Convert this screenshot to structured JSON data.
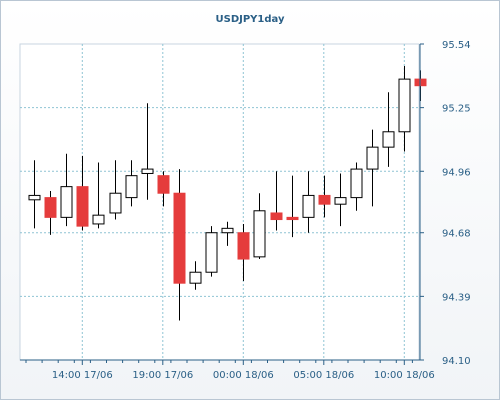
{
  "chart_data": {
    "type": "candlestick",
    "title": "USDJPY1day",
    "y_ticks": [
      "95.54",
      "95.25",
      "94.96",
      "94.68",
      "94.39",
      "94.10"
    ],
    "ylim": [
      94.1,
      95.54
    ],
    "x_ticks": [
      {
        "label": "14:00 17/06",
        "index": 3
      },
      {
        "label": "19:00 17/06",
        "index": 8
      },
      {
        "label": "00:00 18/06",
        "index": 13
      },
      {
        "label": "05:00 18/06",
        "index": 18
      },
      {
        "label": "10:00 18/06",
        "index": 23
      }
    ],
    "grid": true,
    "colors": {
      "up_body": "#ffffff",
      "down_body": "#e53c3c",
      "outline": "#000000",
      "grid": "#8fc4d4",
      "axis": "#2a5f86"
    },
    "candles": [
      {
        "open": 94.83,
        "high": 95.01,
        "low": 94.7,
        "close": 94.85
      },
      {
        "open": 94.84,
        "high": 94.87,
        "low": 94.67,
        "close": 94.75
      },
      {
        "open": 94.75,
        "high": 95.04,
        "low": 94.71,
        "close": 94.89
      },
      {
        "open": 94.89,
        "high": 95.03,
        "low": 94.69,
        "close": 94.71
      },
      {
        "open": 94.72,
        "high": 95.0,
        "low": 94.7,
        "close": 94.76
      },
      {
        "open": 94.77,
        "high": 95.01,
        "low": 94.74,
        "close": 94.86
      },
      {
        "open": 94.84,
        "high": 95.01,
        "low": 94.8,
        "close": 94.94
      },
      {
        "open": 94.95,
        "high": 95.27,
        "low": 94.83,
        "close": 94.97
      },
      {
        "open": 94.94,
        "high": 94.96,
        "low": 94.8,
        "close": 94.86
      },
      {
        "open": 94.86,
        "high": 94.97,
        "low": 94.28,
        "close": 94.45
      },
      {
        "open": 94.45,
        "high": 94.55,
        "low": 94.42,
        "close": 94.5
      },
      {
        "open": 94.5,
        "high": 94.71,
        "low": 94.48,
        "close": 94.68
      },
      {
        "open": 94.68,
        "high": 94.73,
        "low": 94.62,
        "close": 94.7
      },
      {
        "open": 94.68,
        "high": 94.72,
        "low": 94.46,
        "close": 94.56
      },
      {
        "open": 94.57,
        "high": 94.86,
        "low": 94.56,
        "close": 94.78
      },
      {
        "open": 94.77,
        "high": 94.96,
        "low": 94.69,
        "close": 94.74
      },
      {
        "open": 94.75,
        "high": 94.94,
        "low": 94.66,
        "close": 94.74
      },
      {
        "open": 94.75,
        "high": 94.96,
        "low": 94.68,
        "close": 94.85
      },
      {
        "open": 94.85,
        "high": 94.94,
        "low": 94.75,
        "close": 94.81
      },
      {
        "open": 94.81,
        "high": 94.95,
        "low": 94.71,
        "close": 94.84
      },
      {
        "open": 94.84,
        "high": 95.0,
        "low": 94.78,
        "close": 94.97
      },
      {
        "open": 94.97,
        "high": 95.15,
        "low": 94.8,
        "close": 95.07
      },
      {
        "open": 95.07,
        "high": 95.32,
        "low": 94.98,
        "close": 95.14
      },
      {
        "open": 95.14,
        "high": 95.44,
        "low": 95.05,
        "close": 95.38
      },
      {
        "open": 95.38,
        "high": 95.42,
        "low": 95.28,
        "close": 95.35
      }
    ]
  }
}
